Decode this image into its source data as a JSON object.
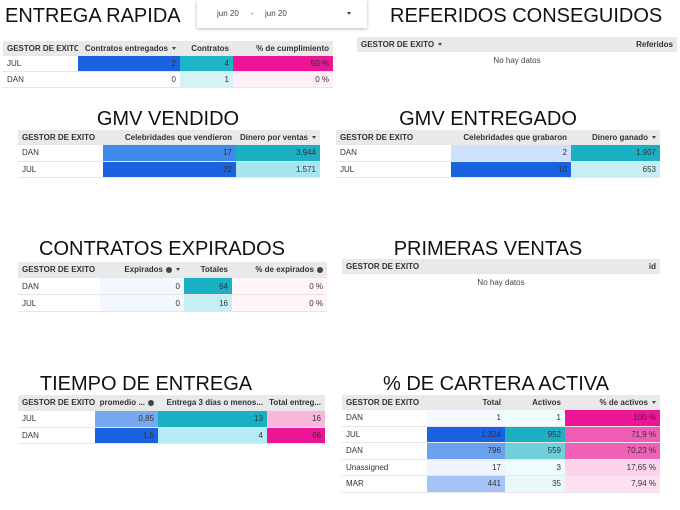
{
  "date_range": {
    "start": "jun 20",
    "separator": "-",
    "end": "jun 20"
  },
  "panels": [
    {
      "title": "ENTREGA RAPIDA",
      "table": {
        "headers": [
          "GESTOR DE EXITO",
          "Contratos entregados",
          "Contratos",
          "% de cumplimiento"
        ],
        "sort_column": 1,
        "help_columns": [],
        "rows": [
          [
            "JUL",
            "2",
            "4",
            "50 %"
          ],
          [
            "DAN",
            "0",
            "1",
            "0 %"
          ]
        ],
        "cell_colors": [
          [
            null,
            "#1a62e0",
            "#1fb5c8",
            "#ec1595"
          ],
          [
            null,
            "#ffffff",
            "#d5f2f6",
            "#fff0f8"
          ]
        ]
      }
    },
    {
      "title": "REFERIDOS CONSEGUIDOS",
      "table": {
        "headers": [
          "GESTOR DE EXITO",
          "Referidos"
        ],
        "sort_column": 0,
        "help_columns": [],
        "empty_text": "No hay datos"
      }
    },
    {
      "title": "GMV VENDIDO",
      "table": {
        "headers": [
          "GESTOR DE EXITO",
          "Celebridades que vendieron",
          "Dinero por ventas"
        ],
        "sort_column": 2,
        "help_columns": [],
        "rows": [
          [
            "DAN",
            "17",
            "3.944"
          ],
          [
            "JUL",
            "22",
            "1.571"
          ]
        ],
        "cell_colors": [
          [
            null,
            "#3d8be8",
            "#1ab0c4"
          ],
          [
            null,
            "#1a62e0",
            "#a7e6ee"
          ]
        ]
      }
    },
    {
      "title": "GMV ENTREGADO",
      "table": {
        "headers": [
          "GESTOR DE EXITO",
          "Celebridades que grabaron",
          "Dinero ganado"
        ],
        "sort_column": 2,
        "help_columns": [],
        "rows": [
          [
            "DAN",
            "2",
            "1.907"
          ],
          [
            "JUL",
            "10",
            "653"
          ]
        ],
        "cell_colors": [
          [
            null,
            "#cfe0fa",
            "#1ab0c4"
          ],
          [
            null,
            "#1a62e0",
            "#c5eff4"
          ]
        ]
      }
    },
    {
      "title": "CONTRATOS EXPIRADOS",
      "table": {
        "headers": [
          "GESTOR DE EXITO",
          "Expirados",
          "Totales",
          "% de expirados"
        ],
        "sort_column": 1,
        "help_columns": [
          1,
          3
        ],
        "rows": [
          [
            "DAN",
            "0",
            "64",
            "0 %"
          ],
          [
            "JUL",
            "0",
            "16",
            "0 %"
          ]
        ],
        "cell_colors": [
          [
            null,
            "#f3f7fe",
            "#1ab0c4",
            "#fff5fa"
          ],
          [
            null,
            "#f3f7fe",
            "#c5eff4",
            "#fff5fa"
          ]
        ]
      }
    },
    {
      "title": "PRIMERAS VENTAS",
      "table": {
        "headers": [
          "GESTOR DE EXITO",
          "id"
        ],
        "sort_column": null,
        "help_columns": [],
        "empty_text": "No hay datos"
      }
    },
    {
      "title": "TIEMPO DE ENTREGA",
      "table": {
        "headers": [
          "GESTOR DE EXITO",
          "promedio ...",
          "Entrega 3 días o menos...",
          "Total entreg..."
        ],
        "sort_column": null,
        "help_columns": [
          1
        ],
        "rows": [
          [
            "JUL",
            "0,85",
            "13",
            "16"
          ],
          [
            "DAN",
            "1,5",
            "4",
            "66"
          ]
        ],
        "cell_colors": [
          [
            null,
            "#78a9f0",
            "#1ab0c4",
            "#f9b7dc"
          ],
          [
            null,
            "#1a62e0",
            "#b5ebf2",
            "#ec1595"
          ]
        ]
      }
    },
    {
      "title": "% DE CARTERA ACTIVA",
      "table": {
        "headers": [
          "GESTOR DE EXITO",
          "Total",
          "Activos",
          "% de activos"
        ],
        "sort_column": 3,
        "help_columns": [],
        "rows": [
          [
            "DAN",
            "1",
            "1",
            "100 %"
          ],
          [
            "JUL",
            "1.324",
            "952",
            "71,9 %"
          ],
          [
            "DAN",
            "796",
            "559",
            "70,23 %"
          ],
          [
            "Unassigned",
            "17",
            "3",
            "17,65 %"
          ],
          [
            "MAR",
            "441",
            "35",
            "7,94 %"
          ]
        ],
        "cell_colors": [
          [
            null,
            "#f5f8fe",
            "#f0fbfc",
            "#ec1595"
          ],
          [
            null,
            "#1a62e0",
            "#1ab0c4",
            "#f05bb5"
          ],
          [
            null,
            "#6aa0ee",
            "#6fd0dc",
            "#f261b8"
          ],
          [
            null,
            "#eef3fd",
            "#f0fbfc",
            "#fbd3ea"
          ],
          [
            null,
            "#a5c6f5",
            "#e9f8fa",
            "#fde1f0"
          ]
        ]
      }
    }
  ]
}
